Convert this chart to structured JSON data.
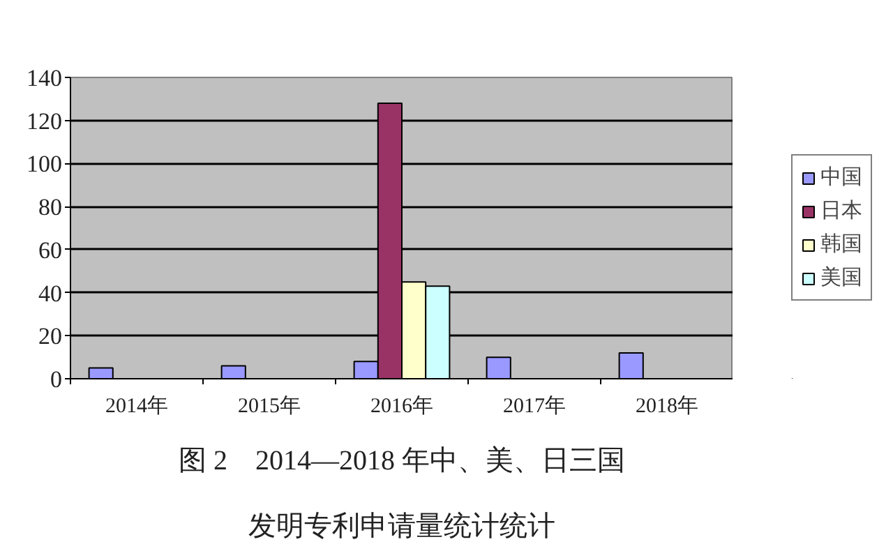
{
  "chart_data": {
    "type": "bar",
    "title": "图 2　2014—2018 年中、美、日三国发明专利申请量统计统计",
    "categories": [
      "2014年",
      "2015年",
      "2016年",
      "2017年",
      "2018年"
    ],
    "series": [
      {
        "name": "中国",
        "color": "#9999ff",
        "values": [
          5,
          6,
          8,
          10,
          12
        ]
      },
      {
        "name": "日本",
        "color": "#993366",
        "values": [
          null,
          null,
          128,
          null,
          null
        ]
      },
      {
        "name": "韩国",
        "color": "#ffffcc",
        "values": [
          null,
          null,
          45,
          null,
          null
        ]
      },
      {
        "name": "美国",
        "color": "#ccffff",
        "values": [
          null,
          null,
          43,
          null,
          null
        ]
      }
    ],
    "ylim": [
      0,
      140
    ],
    "yticks": [
      0,
      20,
      40,
      60,
      80,
      100,
      120,
      140
    ],
    "grid": "y",
    "legend": "right"
  }
}
